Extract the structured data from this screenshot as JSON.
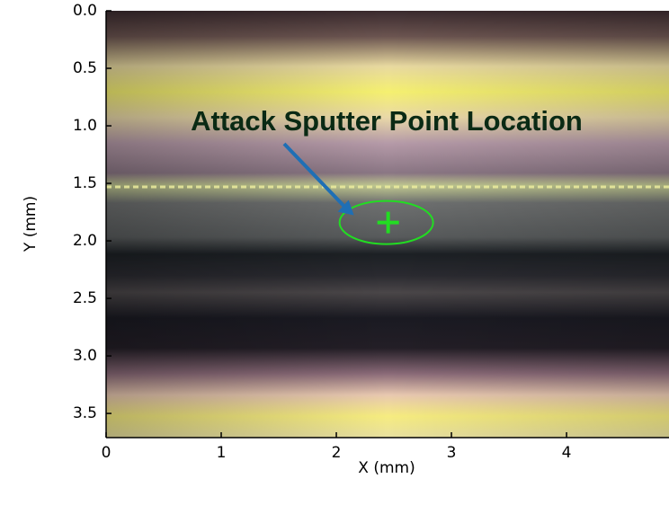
{
  "chart_data": {
    "type": "image",
    "annotation": "Attack Sputter Point Location",
    "xlabel": "X (mm)",
    "ylabel": "Y (mm)",
    "xlim": [
      0,
      4.89
    ],
    "ylim": [
      0,
      3.71
    ],
    "y_inverted": true,
    "xticks": [
      0,
      1,
      2,
      3,
      4
    ],
    "yticks": [
      {
        "value": 0,
        "label": "0.0"
      },
      0.5,
      {
        "value": 1,
        "label": "1.0"
      },
      1.5,
      {
        "value": 2,
        "label": "2.0"
      },
      2.5,
      {
        "value": 3,
        "label": "3.0"
      },
      3.5
    ],
    "point": {
      "x": 2.45,
      "y": 1.84,
      "color": "#22dd22"
    },
    "arrow_color": "#1f6fb5"
  }
}
